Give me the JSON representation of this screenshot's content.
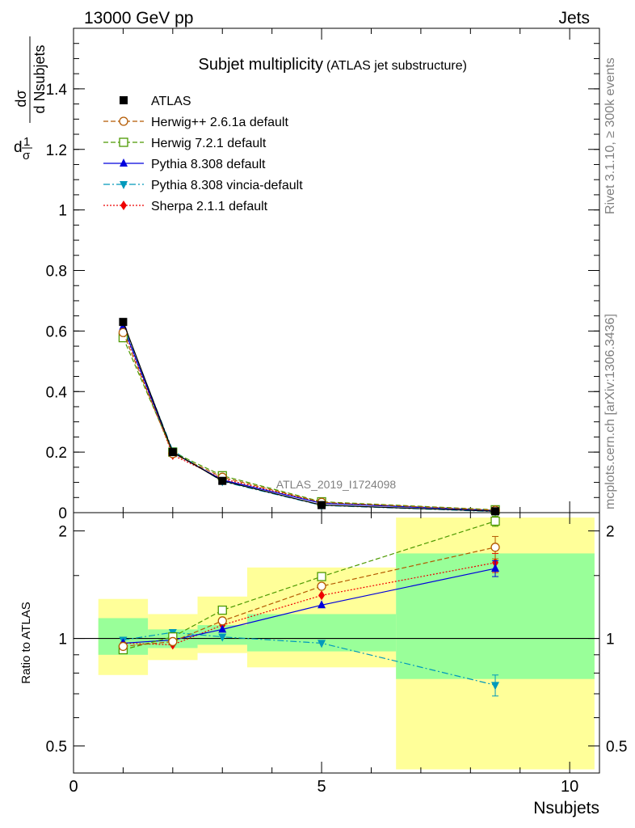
{
  "header": {
    "left": "13000 GeV pp",
    "right": "Jets"
  },
  "side_labels": {
    "rivet": "Rivet 3.1.10, ≥ 300k events",
    "mcplots": "mcplots.cern.ch [arXiv:1306.3436]"
  },
  "watermark": "ATLAS_2019_I1724098",
  "colors": {
    "ATLAS": "#000000",
    "Herwig++": "#b35900",
    "Herwig7": "#4c9900",
    "Pythia": "#0000dd",
    "Vincia": "#0099bb",
    "Sherpa": "#ee0000",
    "band_outer": "#ffff99",
    "band_inner": "#99ff99"
  },
  "chart_data": [
    {
      "type": "line",
      "title": "Subjet multiplicity",
      "subtitle": "(ATLAS jet substructure)",
      "ylabel": {
        "frac": "1",
        "over": "σ",
        "dnum": "dσ",
        "dden": "d Nsubjets"
      },
      "xlim": [
        0,
        10.6
      ],
      "ylim": [
        0,
        1.6
      ],
      "yticks": [
        0,
        0.2,
        0.4,
        0.6,
        0.8,
        1,
        1.2,
        1.4
      ],
      "ytick_labels": [
        "0",
        "0.2",
        "0.4",
        "0.6",
        "0.8",
        "1",
        "1.2",
        "1.4"
      ],
      "x": [
        1,
        2,
        3,
        5,
        8.5
      ],
      "series": [
        {
          "key": "ATLAS",
          "name": "ATLAS",
          "marker": "square-filled",
          "dash": "none",
          "values": [
            0.63,
            0.2,
            0.105,
            0.025,
            0.0045
          ]
        },
        {
          "key": "Herwig++",
          "name": "Herwig++ 2.6.1a default",
          "marker": "circle-open",
          "dash": "6,3",
          "values": [
            0.595,
            0.195,
            0.117,
            0.034,
            0.0081
          ]
        },
        {
          "key": "Herwig7",
          "name": "Herwig 7.2.1 default",
          "marker": "square-open",
          "dash": "6,3",
          "values": [
            0.578,
            0.2,
            0.122,
            0.036,
            0.0096
          ]
        },
        {
          "key": "Pythia",
          "name": "Pythia 8.308 default",
          "marker": "triangle-up",
          "dash": "none",
          "values": [
            0.615,
            0.198,
            0.108,
            0.031,
            0.0071
          ]
        },
        {
          "key": "Vincia",
          "name": "Pythia 8.308 vincia-default",
          "marker": "triangle-down",
          "dash": "8,3,2,3",
          "values": [
            0.625,
            0.205,
            0.103,
            0.024,
            0.0034
          ]
        },
        {
          "key": "Sherpa",
          "name": "Sherpa 2.1.1 default",
          "marker": "diamond",
          "dash": "2,2",
          "values": [
            0.61,
            0.19,
            0.112,
            0.033,
            0.0074
          ]
        }
      ]
    },
    {
      "type": "line",
      "ylabel": "Ratio to ATLAS",
      "xlabel": "Nsubjets",
      "xlim": [
        0,
        10.6
      ],
      "ylim": [
        0.42,
        2.25
      ],
      "scale": "log",
      "yticks": [
        0.5,
        1,
        2
      ],
      "ytick_labels": [
        "0.5",
        "1",
        "2"
      ],
      "xticks": [
        0,
        5,
        10
      ],
      "xtick_labels": [
        "0",
        "5",
        "10"
      ],
      "x": [
        1,
        2,
        3,
        5,
        8.5
      ],
      "bands": [
        {
          "x0": 0.5,
          "x1": 1.5,
          "inner": [
            0.9,
            1.14
          ],
          "outer": [
            0.79,
            1.29
          ]
        },
        {
          "x0": 1.5,
          "x1": 2.5,
          "inner": [
            0.94,
            1.06
          ],
          "outer": [
            0.87,
            1.17
          ]
        },
        {
          "x0": 2.5,
          "x1": 3.5,
          "inner": [
            0.96,
            1.09
          ],
          "outer": [
            0.91,
            1.31
          ]
        },
        {
          "x0": 3.5,
          "x1": 6.5,
          "inner": [
            0.92,
            1.17
          ],
          "outer": [
            0.83,
            1.58
          ]
        },
        {
          "x0": 6.5,
          "x1": 10.5,
          "inner": [
            0.77,
            1.73
          ],
          "outer": [
            0.43,
            2.18
          ]
        }
      ],
      "series": [
        {
          "key": "Herwig++",
          "values": [
            0.95,
            0.98,
            1.12,
            1.4,
            1.8
          ],
          "err_last": 0.13
        },
        {
          "key": "Herwig7",
          "values": [
            0.93,
            1.01,
            1.2,
            1.49,
            2.13
          ],
          "err_last": 0.07
        },
        {
          "key": "Pythia",
          "values": [
            0.97,
            0.99,
            1.06,
            1.24,
            1.57
          ],
          "err_last": 0.08
        },
        {
          "key": "Vincia",
          "values": [
            0.99,
            1.04,
            1.01,
            0.97,
            0.74
          ],
          "err_last": 0.05
        },
        {
          "key": "Sherpa",
          "values": [
            0.97,
            0.96,
            1.09,
            1.32,
            1.63
          ],
          "err_last": 0.1
        }
      ]
    }
  ]
}
